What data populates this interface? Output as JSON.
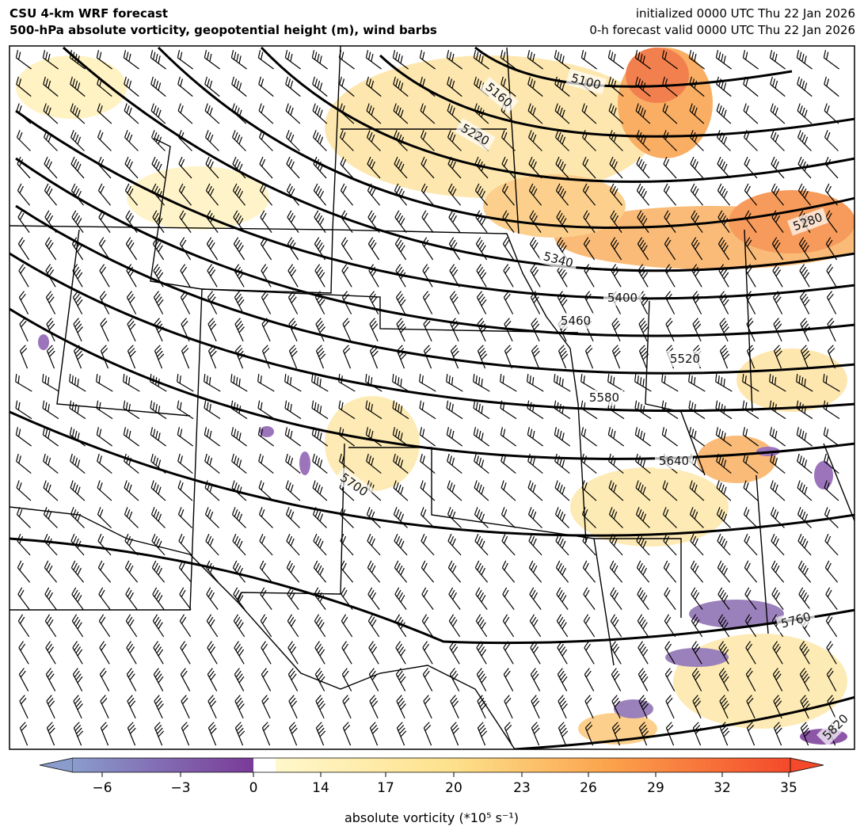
{
  "header": {
    "title": "CSU 4-km WRF forecast",
    "subtitle": "500-hPa absolute vorticity, geopotential height (m), wind barbs",
    "init": "initialized 0000 UTC Thu 22 Jan 2026",
    "valid": "0-h forecast valid 0000 UTC Thu 22 Jan 2026"
  },
  "contour_labels": [
    "5100",
    "5160",
    "5220",
    "5280",
    "5340",
    "5400",
    "5460",
    "5520",
    "5580",
    "5640",
    "5700",
    "5760",
    "5820"
  ],
  "colorbar": {
    "ticks": [
      {
        "value": -6,
        "label": "−6"
      },
      {
        "value": -3,
        "label": "−3"
      },
      0,
      14,
      17,
      20,
      23,
      26,
      29,
      32,
      35
    ],
    "label": "absolute vorticity (*10⁵ s⁻¹)"
  }
}
